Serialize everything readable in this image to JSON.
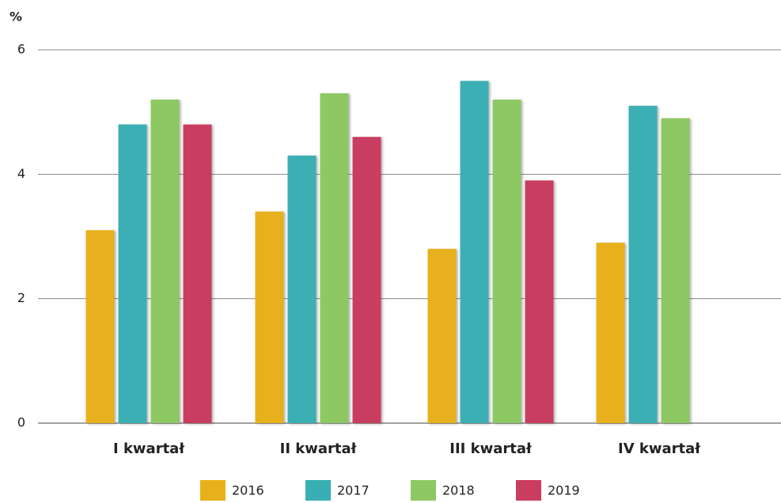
{
  "chart_data": {
    "type": "bar",
    "y_axis_label": "%",
    "categories": [
      "I kwartał",
      "II kwartał",
      "III kwartał",
      "IV kwartał"
    ],
    "series": [
      {
        "name": "2016",
        "color": "#e8b01a",
        "values": [
          3.1,
          3.4,
          2.8,
          2.9
        ]
      },
      {
        "name": "2017",
        "color": "#3aafb3",
        "values": [
          4.8,
          4.3,
          5.5,
          5.1
        ]
      },
      {
        "name": "2018",
        "color": "#8dc863",
        "values": [
          5.2,
          5.3,
          5.2,
          4.9
        ]
      },
      {
        "name": "2019",
        "color": "#c93d60",
        "values": [
          4.8,
          4.6,
          3.9,
          null
        ]
      }
    ],
    "ylim": [
      0,
      6
    ],
    "yticks": [
      0,
      2,
      4,
      6
    ],
    "grid": true,
    "legend": "bottom"
  }
}
